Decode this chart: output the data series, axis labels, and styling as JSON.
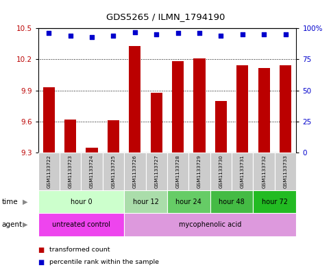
{
  "title": "GDS5265 / ILMN_1794190",
  "samples": [
    "GSM1133722",
    "GSM1133723",
    "GSM1133724",
    "GSM1133725",
    "GSM1133726",
    "GSM1133727",
    "GSM1133728",
    "GSM1133729",
    "GSM1133730",
    "GSM1133731",
    "GSM1133732",
    "GSM1133733"
  ],
  "bar_values": [
    9.93,
    9.62,
    9.35,
    9.61,
    10.33,
    9.88,
    10.18,
    10.21,
    9.8,
    10.14,
    10.12,
    10.14
  ],
  "percentile_values": [
    96,
    94,
    93,
    94,
    97,
    95,
    96,
    96,
    94,
    95,
    95,
    95
  ],
  "bar_color": "#BB0000",
  "percentile_color": "#0000CC",
  "ylim_left": [
    9.3,
    10.5
  ],
  "ylim_right": [
    0,
    100
  ],
  "yticks_left": [
    9.3,
    9.6,
    9.9,
    10.2,
    10.5
  ],
  "yticks_right": [
    0,
    25,
    50,
    75,
    100
  ],
  "ytick_labels_right": [
    "0",
    "25",
    "50",
    "75",
    "100%"
  ],
  "time_groups": [
    {
      "label": "hour 0",
      "start": 0,
      "end": 4,
      "color": "#ccffcc"
    },
    {
      "label": "hour 12",
      "start": 4,
      "end": 6,
      "color": "#aaddaa"
    },
    {
      "label": "hour 24",
      "start": 6,
      "end": 8,
      "color": "#66cc66"
    },
    {
      "label": "hour 48",
      "start": 8,
      "end": 10,
      "color": "#44bb44"
    },
    {
      "label": "hour 72",
      "start": 10,
      "end": 12,
      "color": "#22bb22"
    }
  ],
  "agent_groups": [
    {
      "label": "untreated control",
      "start": 0,
      "end": 4,
      "color": "#ee44ee"
    },
    {
      "label": "mycophenolic acid",
      "start": 4,
      "end": 12,
      "color": "#dd99dd"
    }
  ],
  "background_color": "#ffffff",
  "sample_bg_color": "#cccccc",
  "grid_yticks": [
    9.6,
    9.9,
    10.2
  ]
}
